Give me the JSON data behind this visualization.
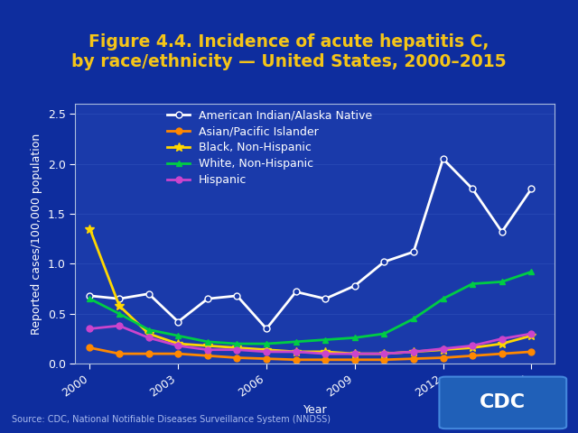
{
  "title": "Figure 4.4. Incidence of acute hepatitis C,\nby race/ethnicity — United States, 2000–2015",
  "xlabel": "Year",
  "ylabel": "Reported cases/100,000 population",
  "background_color": "#1240ab",
  "plot_bg_color": "#1a3aaa",
  "outer_bg_color": "#0e2d9e",
  "title_color": "#f5c518",
  "axis_color": "#ffffff",
  "source_text": "Source: CDC, National Notifiable Diseases Surveillance System (NNDSS)",
  "years": [
    2000,
    2001,
    2002,
    2003,
    2004,
    2005,
    2006,
    2007,
    2008,
    2009,
    2010,
    2011,
    2012,
    2013,
    2014,
    2015
  ],
  "series": {
    "American Indian/Alaska Native": {
      "values": [
        0.68,
        0.65,
        0.7,
        0.42,
        0.65,
        0.68,
        0.35,
        0.72,
        0.65,
        0.78,
        1.02,
        1.12,
        2.05,
        1.75,
        1.32,
        1.75
      ],
      "color": "#ffffff",
      "marker": "o",
      "marker_facecolor": "#1a3aaa",
      "linewidth": 2.0
    },
    "Asian/Pacific Islander": {
      "values": [
        0.16,
        0.1,
        0.1,
        0.1,
        0.08,
        0.06,
        0.05,
        0.04,
        0.04,
        0.04,
        0.04,
        0.05,
        0.06,
        0.08,
        0.1,
        0.12
      ],
      "color": "#ff8800",
      "marker": "o",
      "marker_facecolor": "#ff8800",
      "linewidth": 2.0
    },
    "Black, Non-Hispanic": {
      "values": [
        1.35,
        0.58,
        0.3,
        0.2,
        0.18,
        0.16,
        0.14,
        0.12,
        0.12,
        0.1,
        0.1,
        0.12,
        0.14,
        0.16,
        0.2,
        0.28
      ],
      "color": "#ffd700",
      "marker": "*",
      "marker_facecolor": "#ffd700",
      "linewidth": 2.0
    },
    "White, Non-Hispanic": {
      "values": [
        0.65,
        0.5,
        0.34,
        0.28,
        0.22,
        0.2,
        0.2,
        0.22,
        0.24,
        0.26,
        0.3,
        0.45,
        0.65,
        0.8,
        0.82,
        0.92
      ],
      "color": "#00cc44",
      "marker": "^",
      "marker_facecolor": "#00cc44",
      "linewidth": 2.0
    },
    "Hispanic": {
      "values": [
        0.35,
        0.38,
        0.26,
        0.18,
        0.14,
        0.14,
        0.12,
        0.12,
        0.1,
        0.1,
        0.1,
        0.12,
        0.15,
        0.18,
        0.25,
        0.3
      ],
      "color": "#cc44cc",
      "marker": "o",
      "marker_facecolor": "#cc44cc",
      "linewidth": 2.0
    }
  },
  "ylim": [
    0,
    2.6
  ],
  "yticks": [
    0,
    0.5,
    1.0,
    1.5,
    2.0,
    2.5
  ],
  "xticks": [
    2000,
    2003,
    2006,
    2009,
    2012,
    2015
  ],
  "legend_text_color": "#ffffff",
  "tick_color": "#ffffff",
  "grid_color": "#4466cc",
  "title_fontsize": 13.5,
  "axis_label_fontsize": 9,
  "tick_fontsize": 9,
  "legend_fontsize": 9
}
